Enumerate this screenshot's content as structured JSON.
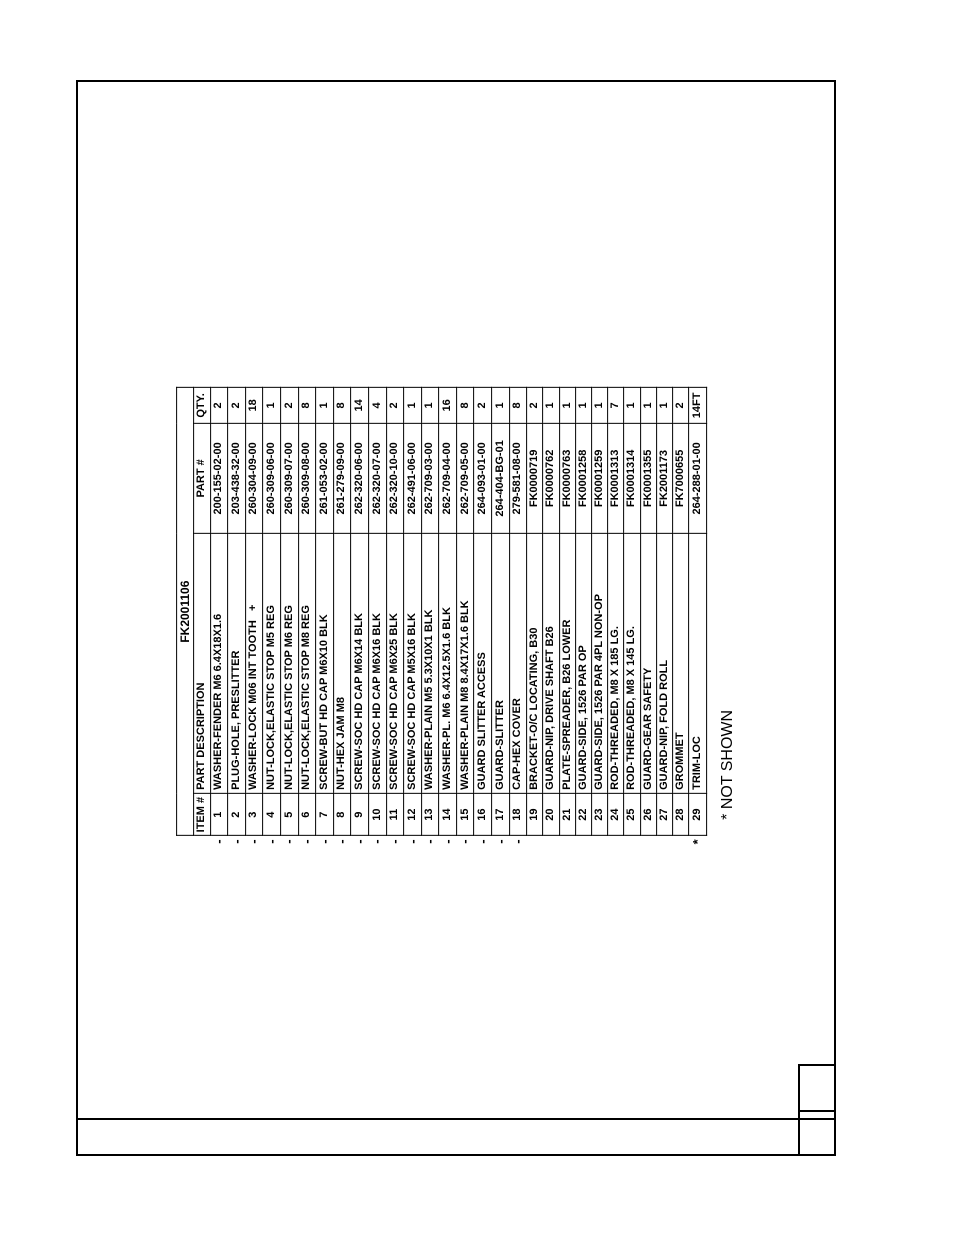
{
  "bom": {
    "title": "FK2001106",
    "headers": {
      "item": "ITEM #",
      "description": "PART DESCRIPTION",
      "part": "PART #",
      "qty": "QTY."
    },
    "rows": [
      {
        "item": "1",
        "desc": "WASHER-FENDER M6 6.4X18X1.6",
        "part": "200-155-02-00",
        "qty": "2",
        "note": "-"
      },
      {
        "item": "2",
        "desc": "PLUG-HOLE, PRESLITTER",
        "part": "203-438-32-00",
        "qty": "2",
        "note": "-"
      },
      {
        "item": "3",
        "desc": "WASHER-LOCK M06 INT TOOTH   +",
        "part": "260-304-09-00",
        "qty": "18",
        "note": "-"
      },
      {
        "item": "4",
        "desc": "NUT-LOCK,ELASTIC STOP M5 REG",
        "part": "260-309-06-00",
        "qty": "1",
        "note": "-"
      },
      {
        "item": "5",
        "desc": "NUT-LOCK,ELASTIC STOP M6 REG",
        "part": "260-309-07-00",
        "qty": "2",
        "note": "-"
      },
      {
        "item": "6",
        "desc": "NUT-LOCK,ELASTIC STOP M8 REG",
        "part": "260-309-08-00",
        "qty": "8",
        "note": "-"
      },
      {
        "item": "7",
        "desc": "SCREW-BUT HD CAP M6X10 BLK",
        "part": "261-053-02-00",
        "qty": "1",
        "note": "-"
      },
      {
        "item": "8",
        "desc": "NUT-HEX JAM M8",
        "part": "261-279-09-00",
        "qty": "8",
        "note": "-"
      },
      {
        "item": "9",
        "desc": "SCREW-SOC HD CAP M6X14 BLK",
        "part": "262-320-06-00",
        "qty": "14",
        "note": "-"
      },
      {
        "item": "10",
        "desc": "SCREW-SOC HD CAP M6X16 BLK",
        "part": "262-320-07-00",
        "qty": "4",
        "note": "-"
      },
      {
        "item": "11",
        "desc": "SCREW-SOC HD CAP M6X25 BLK",
        "part": "262-320-10-00",
        "qty": "2",
        "note": "-"
      },
      {
        "item": "12",
        "desc": "SCREW-SOC HD CAP M5X16 BLK",
        "part": "262-491-06-00",
        "qty": "1",
        "note": "-"
      },
      {
        "item": "13",
        "desc": "WASHER-PLAIN M5 5.3X10X1 BLK",
        "part": "262-709-03-00",
        "qty": "1",
        "note": "-"
      },
      {
        "item": "14",
        "desc": "WASHER-PL. M6 6.4X12.5X1.6 BLK",
        "part": "262-709-04-00",
        "qty": "16",
        "note": "-"
      },
      {
        "item": "15",
        "desc": "WASHER-PLAIN M8 8.4X17X1.6 BLK",
        "part": "262-709-05-00",
        "qty": "8",
        "note": "-"
      },
      {
        "item": "16",
        "desc": "GUARD SLITTER ACCESS",
        "part": "264-093-01-00",
        "qty": "2",
        "note": "-"
      },
      {
        "item": "17",
        "desc": "GUARD-SLITTER",
        "part": "264-404-BG-01",
        "qty": "1",
        "note": "-"
      },
      {
        "item": "18",
        "desc": "CAP-HEX COVER",
        "part": "279-581-08-00",
        "qty": "8",
        "note": "-"
      },
      {
        "item": "19",
        "desc": "BRACKET-O/C LOCATING, B30",
        "part": "FK0000719",
        "qty": "2",
        "note": ""
      },
      {
        "item": "20",
        "desc": "GUARD-NIP, DRIVE SHAFT B26",
        "part": "FK0000762",
        "qty": "1",
        "note": ""
      },
      {
        "item": "21",
        "desc": "PLATE-SPREADER, B26 LOWER",
        "part": "FK0000763",
        "qty": "1",
        "note": ""
      },
      {
        "item": "22",
        "desc": "GUARD-SIDE, 1526 PAR OP",
        "part": "FK0001258",
        "qty": "1",
        "note": ""
      },
      {
        "item": "23",
        "desc": "GUARD-SIDE, 1526 PAR 4PL NON-OP",
        "part": "FK0001259",
        "qty": "1",
        "note": ""
      },
      {
        "item": "24",
        "desc": "ROD-THREADED, M8 X 185 LG.",
        "part": "FK0001313",
        "qty": "7",
        "note": ""
      },
      {
        "item": "25",
        "desc": "ROD-THREADED, M8 X 145 LG.",
        "part": "FK0001314",
        "qty": "1",
        "note": ""
      },
      {
        "item": "26",
        "desc": "GUARD-GEAR SAFETY",
        "part": "FK0001355",
        "qty": "1",
        "note": ""
      },
      {
        "item": "27",
        "desc": "GUARD-NIP, FOLD ROLL",
        "part": "FK2001173",
        "qty": "1",
        "note": ""
      },
      {
        "item": "28",
        "desc": "GROMMET",
        "part": "FK7000655",
        "qty": "2",
        "note": ""
      },
      {
        "item": "29",
        "desc": "TRIM-LOC",
        "part": "264-288-01-00",
        "qty": "14FT",
        "note": "*"
      }
    ],
    "footnote": "* NOT SHOWN"
  }
}
